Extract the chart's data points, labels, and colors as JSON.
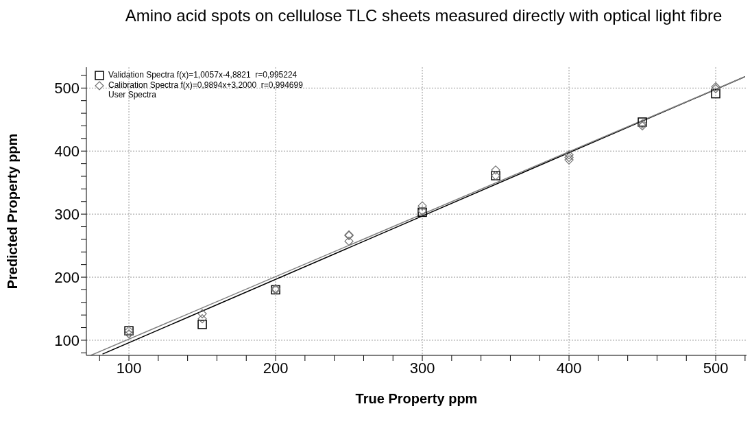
{
  "chart_data": {
    "type": "scatter",
    "title": "Amino acid spots on cellulose TLC sheets measured directly with optical light fibre",
    "xlabel": "True Property ppm",
    "ylabel": "Predicted Property ppm",
    "series": [
      {
        "name": "Validation Spectra f(x)=1,0057x-4,8821  r=0,995224",
        "color": "#000000",
        "marker": "square",
        "x": [
          100,
          150,
          200,
          300,
          350,
          450,
          500
        ],
        "values": [
          115,
          125,
          180,
          303,
          361,
          446,
          491
        ]
      },
      {
        "name": "Calibration Spectra f(x)=0,9894x+3,2000  r=0,994699",
        "color": "#707070",
        "marker": "diamond",
        "x": [
          100,
          100,
          150,
          150,
          200,
          200,
          250,
          250,
          250,
          300,
          300,
          350,
          350,
          400,
          400,
          400,
          450,
          450,
          500,
          500
        ],
        "values": [
          115,
          110,
          142,
          134,
          180,
          182,
          267,
          266,
          257,
          313,
          305,
          370,
          361,
          394,
          390,
          386,
          443,
          440,
          502,
          499
        ]
      },
      {
        "type": "line",
        "color": "#000000",
        "x": [
          82,
          520
        ],
        "values": [
          78,
          518
        ]
      },
      {
        "type": "line",
        "color": "#808080",
        "x": [
          74,
          520
        ],
        "values": [
          76,
          518
        ]
      }
    ],
    "annotations": [
      "User Spectra"
    ],
    "xlim": [
      71,
      521
    ],
    "ylim": [
      76,
      533
    ],
    "xticks": [
      {
        "value": 80,
        "label": null
      },
      100,
      {
        "value": 120,
        "label": null
      },
      {
        "value": 140,
        "label": null
      },
      {
        "value": 160,
        "label": null
      },
      {
        "value": 180,
        "label": null
      },
      200,
      {
        "value": 220,
        "label": null
      },
      {
        "value": 240,
        "label": null
      },
      {
        "value": 260,
        "label": null
      },
      {
        "value": 280,
        "label": null
      },
      300,
      {
        "value": 320,
        "label": null
      },
      {
        "value": 340,
        "label": null
      },
      {
        "value": 360,
        "label": null
      },
      {
        "value": 380,
        "label": null
      },
      400,
      {
        "value": 420,
        "label": null
      },
      {
        "value": 440,
        "label": null
      },
      {
        "value": 460,
        "label": null
      },
      {
        "value": 480,
        "label": null
      },
      500,
      {
        "value": 520,
        "label": null
      }
    ],
    "yticks": [
      {
        "value": 80,
        "label": null
      },
      100,
      {
        "value": 120,
        "label": null
      },
      {
        "value": 140,
        "label": null
      },
      {
        "value": 160,
        "label": null
      },
      {
        "value": 180,
        "label": null
      },
      200,
      {
        "value": 220,
        "label": null
      },
      {
        "value": 240,
        "label": null
      },
      {
        "value": 260,
        "label": null
      },
      {
        "value": 280,
        "label": null
      },
      300,
      {
        "value": 320,
        "label": null
      },
      {
        "value": 340,
        "label": null
      },
      {
        "value": 360,
        "label": null
      },
      {
        "value": 380,
        "label": null
      },
      400,
      {
        "value": 420,
        "label": null
      },
      {
        "value": 440,
        "label": null
      },
      {
        "value": 460,
        "label": null
      },
      {
        "value": 480,
        "label": null
      },
      500,
      {
        "value": 520,
        "label": null
      }
    ],
    "grid": true,
    "legend": "top left",
    "line_style": "solid"
  }
}
